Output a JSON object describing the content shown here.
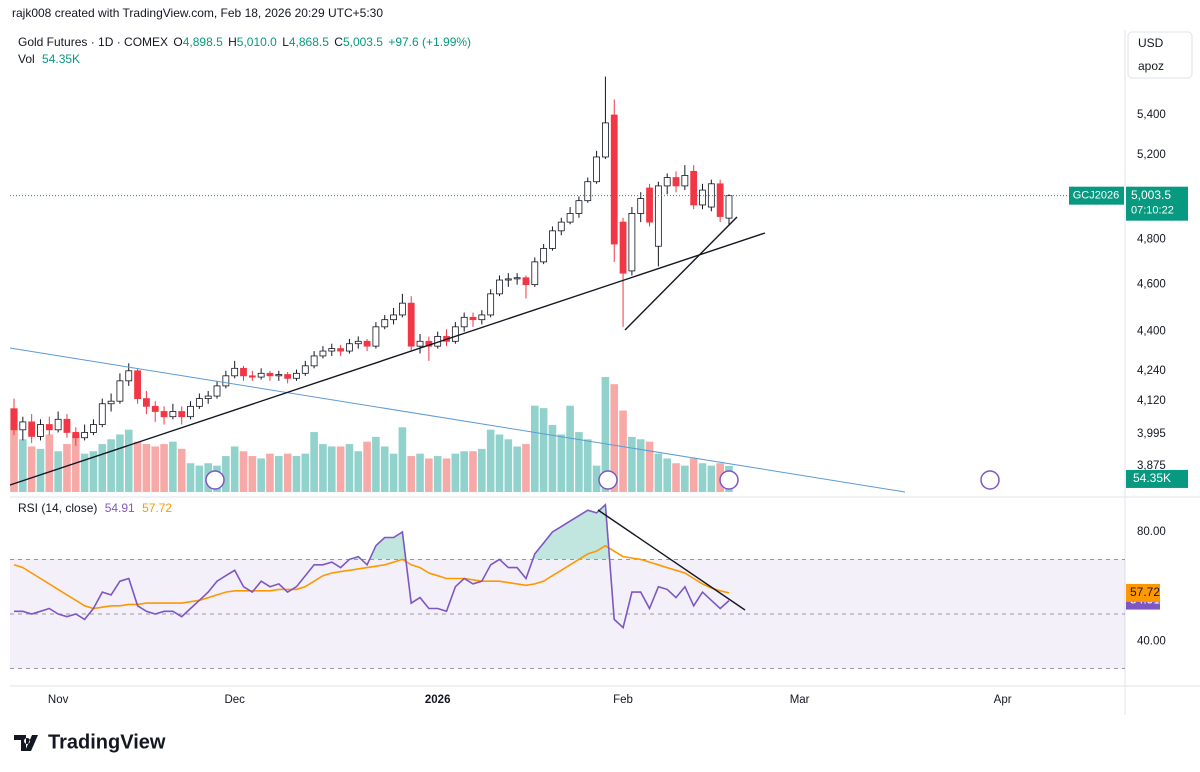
{
  "header": {
    "credit": "rajk008 created with TradingView.com, Feb 18, 2026 20:29 UTC+5:30",
    "currency": "USD",
    "scale_mode": "apoz"
  },
  "legend": {
    "symbol": "Gold Futures · 1D · COMEX",
    "items": [
      {
        "key": "O",
        "value": "4,898.5"
      },
      {
        "key": "H",
        "value": "5,010.0"
      },
      {
        "key": "L",
        "value": "4,868.5"
      },
      {
        "key": "C",
        "value": "5,003.5"
      }
    ],
    "change": "+97.6 (+1.99%)",
    "volume_key": "Vol"
  },
  "price_tag": {
    "symbol": "GCJ2026",
    "price": "5,003.5",
    "countdown": "07:10:22"
  },
  "footer": {
    "logo": "TradingView"
  },
  "chart_data": [
    {
      "type": "candlestick",
      "log_scale": true,
      "grid": false,
      "up_color": "#089981",
      "down_color": "#f23645",
      "volume_up_color": "#92d2cc",
      "volume_down_color": "#f7a9a7",
      "ylim": [
        3781,
        5852
      ],
      "yticks": [
        {
          "value": 3875,
          "label": "3,875"
        },
        {
          "value": 3995,
          "label": "3,995"
        },
        {
          "value": 4120,
          "label": "4,120"
        },
        {
          "value": 4240,
          "label": "4,240"
        },
        {
          "value": 4400,
          "label": "4,400"
        },
        {
          "value": 4600,
          "label": "4,600"
        },
        {
          "value": 4800,
          "label": "4,800"
        },
        {
          "value": 5200,
          "label": "5,200"
        },
        {
          "value": 5400,
          "label": "5,400"
        }
      ],
      "volume_lim": [
        0,
        242
      ],
      "volume_label": "54.35K",
      "categories": [
        null,
        null,
        null,
        null,
        null,
        "Nov",
        null,
        null,
        null,
        null,
        null,
        null,
        null,
        null,
        null,
        null,
        null,
        null,
        null,
        null,
        null,
        null,
        null,
        null,
        null,
        "Dec",
        null,
        null,
        null,
        null,
        null,
        null,
        null,
        null,
        null,
        null,
        null,
        null,
        null,
        null,
        null,
        null,
        null,
        null,
        null,
        null,
        null,
        null,
        "2026",
        null,
        null,
        null,
        null,
        null,
        null,
        null,
        null,
        null,
        null,
        null,
        null,
        null,
        null,
        null,
        null,
        null,
        null,
        null,
        null,
        "Feb",
        null,
        null,
        null,
        null,
        null,
        null,
        null,
        null,
        null,
        null,
        null,
        null,
        null,
        null,
        null,
        null,
        null,
        null,
        null,
        "Mar",
        null,
        null,
        null,
        null,
        null,
        null,
        null,
        null,
        null,
        null,
        null,
        null,
        null,
        null,
        null,
        null,
        null,
        null,
        null,
        null,
        null,
        null,
        "Apr"
      ],
      "open": [
        4090,
        4010,
        4040,
        3985,
        4030,
        4010,
        4050,
        4000,
        3980,
        4000,
        4030,
        4110,
        4120,
        4200,
        4240,
        4130,
        4100,
        4080,
        4060,
        4080,
        4060,
        4100,
        4130,
        4140,
        4180,
        4220,
        4250,
        4220,
        4215,
        4230,
        4220,
        4225,
        4210,
        4230,
        4260,
        4300,
        4320,
        4330,
        4320,
        4350,
        4360,
        4340,
        4420,
        4450,
        4470,
        4520,
        4340,
        4360,
        4340,
        4380,
        4360,
        4420,
        4460,
        4450,
        4470,
        4560,
        4620,
        4625,
        4630,
        4600,
        4700,
        4760,
        4840,
        4880,
        4920,
        4980,
        5070,
        5190,
        5400,
        4880,
        4660,
        4920,
        5040,
        4770,
        5050,
        5090,
        5050,
        5120,
        4960,
        4950,
        5060,
        4898.5,
        null,
        null,
        null,
        null,
        null,
        null,
        null,
        null,
        null,
        null,
        null,
        null,
        null,
        null,
        null,
        null,
        null,
        null,
        null,
        null,
        null,
        null,
        null,
        null,
        null,
        null,
        null,
        null,
        null,
        null,
        null
      ],
      "high": [
        4130,
        4060,
        4070,
        4050,
        4060,
        4080,
        4070,
        4020,
        4030,
        4050,
        4130,
        4150,
        4230,
        4270,
        4250,
        4160,
        4120,
        4100,
        4110,
        4100,
        4120,
        4150,
        4160,
        4200,
        4240,
        4280,
        4260,
        4240,
        4250,
        4240,
        4240,
        4235,
        4245,
        4280,
        4320,
        4340,
        4350,
        4345,
        4370,
        4380,
        4370,
        4440,
        4470,
        4500,
        4560,
        4550,
        4390,
        4380,
        4400,
        4410,
        4440,
        4480,
        4480,
        4490,
        4580,
        4640,
        4650,
        4650,
        4640,
        4720,
        4780,
        4860,
        4900,
        4950,
        5000,
        5090,
        5220,
        5600,
        5480,
        4900,
        4950,
        5020,
        5060,
        5070,
        5110,
        5120,
        5150,
        5150,
        5060,
        5080,
        5080,
        5010,
        null,
        null,
        null,
        null,
        null,
        null,
        null,
        null,
        null,
        null,
        null,
        null,
        null,
        null,
        null,
        null,
        null,
        null,
        null,
        null,
        null,
        null,
        null,
        null,
        null,
        null,
        null,
        null,
        null,
        null,
        null
      ],
      "low": [
        3990,
        3970,
        3960,
        3970,
        3990,
        4000,
        3980,
        3950,
        3970,
        3990,
        4020,
        4080,
        4110,
        4180,
        4110,
        4070,
        4040,
        4030,
        4050,
        4030,
        4050,
        4090,
        4110,
        4130,
        4170,
        4210,
        4200,
        4200,
        4205,
        4200,
        4200,
        4190,
        4200,
        4220,
        4250,
        4290,
        4300,
        4300,
        4310,
        4330,
        4320,
        4330,
        4410,
        4430,
        4460,
        4320,
        4310,
        4280,
        4330,
        4340,
        4350,
        4400,
        4420,
        4430,
        4460,
        4550,
        4590,
        4600,
        4540,
        4590,
        4690,
        4750,
        4820,
        4870,
        4900,
        4970,
        5060,
        5180,
        4700,
        4420,
        4640,
        4880,
        4860,
        4680,
        5010,
        5020,
        5030,
        4940,
        4940,
        4930,
        4880,
        4868.5,
        null,
        null,
        null,
        null,
        null,
        null,
        null,
        null,
        null,
        null,
        null,
        null,
        null,
        null,
        null,
        null,
        null,
        null,
        null,
        null,
        null,
        null,
        null,
        null,
        null,
        null,
        null,
        null,
        null,
        null,
        null
      ],
      "close": [
        4010,
        4040,
        3985,
        4030,
        4010,
        4050,
        4000,
        3980,
        4000,
        4030,
        4110,
        4120,
        4200,
        4240,
        4130,
        4100,
        4080,
        4060,
        4080,
        4060,
        4100,
        4130,
        4140,
        4180,
        4220,
        4250,
        4220,
        4215,
        4230,
        4220,
        4225,
        4210,
        4230,
        4260,
        4300,
        4320,
        4330,
        4320,
        4350,
        4360,
        4340,
        4420,
        4450,
        4470,
        4520,
        4340,
        4360,
        4340,
        4380,
        4360,
        4420,
        4460,
        4450,
        4470,
        4560,
        4620,
        4625,
        4630,
        4600,
        4700,
        4760,
        4840,
        4880,
        4920,
        4980,
        5070,
        5190,
        5360,
        4780,
        4650,
        4920,
        4990,
        4880,
        5050,
        5090,
        5050,
        5100,
        4960,
        5030,
        5060,
        4905.9,
        5003.5,
        null,
        null,
        null,
        null,
        null,
        null,
        null,
        null,
        null,
        null,
        null,
        null,
        null,
        null,
        null,
        null,
        null,
        null,
        null,
        null,
        null,
        null,
        null,
        null,
        null,
        null,
        null,
        null,
        null,
        null,
        null
      ],
      "volume": [
        175,
        110,
        95,
        90,
        120,
        85,
        100,
        120,
        80,
        85,
        100,
        110,
        120,
        130,
        105,
        100,
        95,
        100,
        105,
        90,
        60,
        55,
        60,
        55,
        75,
        95,
        85,
        75,
        70,
        80,
        75,
        80,
        75,
        80,
        125,
        100,
        95,
        95,
        100,
        85,
        105,
        115,
        95,
        80,
        135,
        75,
        80,
        70,
        75,
        70,
        80,
        85,
        85,
        90,
        130,
        120,
        110,
        95,
        100,
        180,
        175,
        140,
        120,
        180,
        125,
        110,
        55,
        240,
        225,
        170,
        115,
        110,
        105,
        80,
        70,
        60,
        55,
        70,
        60,
        55,
        60,
        54.35,
        null,
        null,
        null,
        null,
        null,
        null,
        null,
        null,
        null,
        null,
        null,
        null,
        null,
        null,
        null,
        null,
        null,
        null,
        null,
        null,
        null,
        null,
        null,
        null,
        null,
        null,
        null,
        null,
        null,
        null,
        null
      ]
    },
    {
      "type": "line",
      "title": "RSI (14, close)",
      "ylim": [
        24,
        91
      ],
      "yticks": [
        {
          "value": 40,
          "label": "40.00"
        },
        {
          "value": 80,
          "label": "80.00"
        }
      ],
      "band_lines": [
        30,
        50,
        70
      ],
      "band_color": "#7e57c2",
      "overbought_color": "#089981",
      "series": [
        {
          "color": "#7e57c2",
          "values": [
            51,
            51,
            50,
            51,
            52,
            50,
            49,
            50,
            48,
            52,
            58,
            57,
            62,
            63,
            53,
            51,
            50,
            51,
            51,
            49,
            52,
            55,
            58,
            62,
            64,
            66,
            60,
            58,
            62,
            60,
            61,
            58,
            60,
            64,
            68,
            68,
            69,
            67,
            70,
            71,
            68,
            75,
            78,
            78,
            80,
            54,
            56,
            52,
            52,
            51,
            60,
            63,
            61,
            62,
            68,
            70,
            67,
            67,
            63,
            72,
            76,
            80,
            82,
            84,
            86,
            88,
            87,
            90,
            48,
            45,
            58,
            58,
            52,
            60,
            59,
            56,
            60,
            53,
            58,
            55,
            52,
            54.91,
            null,
            null,
            null,
            null,
            null,
            null,
            null,
            null,
            null,
            null,
            null,
            null,
            null,
            null,
            null,
            null,
            null,
            null,
            null,
            null,
            null,
            null,
            null,
            null,
            null,
            null,
            null,
            null,
            null,
            null,
            null
          ]
        },
        {
          "color": "#ff9800",
          "values": [
            68,
            67,
            65,
            63,
            61,
            59,
            57,
            55,
            53,
            52,
            52.5,
            53,
            53,
            53.5,
            53.5,
            54,
            54,
            54,
            54,
            54,
            54.5,
            55,
            56,
            57,
            58,
            58.5,
            58.5,
            58.5,
            58.5,
            58.5,
            59,
            59,
            59,
            60,
            62,
            64,
            65,
            65.5,
            66,
            66.5,
            67,
            67.5,
            68,
            69,
            70,
            68,
            67,
            65,
            64,
            63,
            63,
            63,
            62.5,
            62,
            62,
            62,
            61.5,
            61,
            60.5,
            61,
            62,
            64,
            66,
            68,
            70,
            72,
            73,
            75,
            73,
            71,
            70.5,
            70,
            69,
            68,
            67,
            66,
            65,
            63,
            61,
            59.5,
            58.5,
            57.72,
            null,
            null,
            null,
            null,
            null,
            null,
            null,
            null,
            null,
            null,
            null,
            null,
            null,
            null,
            null,
            null,
            null,
            null,
            null,
            null,
            null,
            null,
            null,
            null,
            null,
            null,
            null,
            null,
            null,
            null,
            null
          ]
        }
      ]
    }
  ]
}
